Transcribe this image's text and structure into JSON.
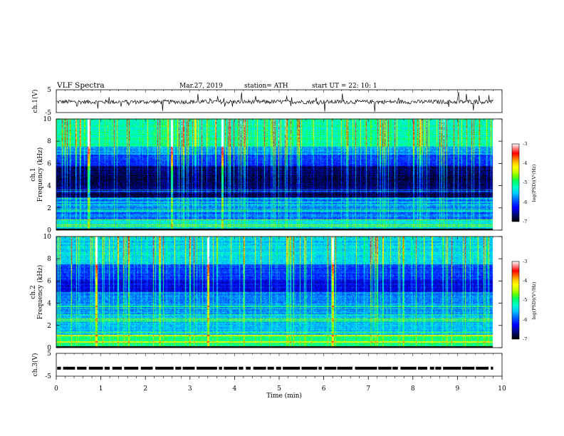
{
  "header": {
    "title": "VLF  Spectra",
    "date": "Mar.27, 2019",
    "station": "station= ATH",
    "start_ut": "start  UT  =    22: 10: 1"
  },
  "chart_data": {
    "type": "heatmap",
    "x": {
      "label": "Time  (min)",
      "range": [
        0,
        10
      ],
      "ticks": [
        "0",
        "1",
        "2",
        "3",
        "4",
        "5",
        "6",
        "7",
        "8",
        "9",
        "10"
      ],
      "data_end": 9.8
    },
    "panels": [
      {
        "id": "ch1-waveform",
        "type": "line",
        "ylabel": "ch.1(V)",
        "ylim": [
          -5,
          5
        ],
        "yticks": [
          "5",
          "-5"
        ],
        "baseline": -0.3,
        "noise_amplitude": 0.9
      },
      {
        "id": "ch1-spectrogram",
        "type": "heatmap",
        "ylabel": "Frequency  (kHz)",
        "channel_label": "ch.1",
        "ylim": [
          0,
          10
        ],
        "yticks": [
          "0",
          "2",
          "4",
          "6",
          "8",
          "10"
        ],
        "bright_bursts_min": [
          0.72,
          2.58,
          3.72
        ],
        "colorbar": {
          "label": "log(PSD)(V²/Hz)",
          "range": [
            -7,
            -3
          ],
          "ticks": [
            "-3",
            "-4",
            "-5",
            "-6",
            "-7"
          ]
        }
      },
      {
        "id": "ch2-spectrogram",
        "type": "heatmap",
        "ylabel": "Frequency  (kHz)",
        "channel_label": "ch.2",
        "ylim": [
          0,
          10
        ],
        "yticks": [
          "0",
          "2",
          "4",
          "6",
          "8",
          "10"
        ],
        "bright_bursts_min": [
          0.9,
          3.4,
          6.2
        ],
        "colorbar": {
          "label": "log(PSD)(V²/Hz)",
          "range": [
            -7,
            -3
          ],
          "ticks": [
            "-3",
            "-4",
            "-5",
            "-6",
            "-7"
          ]
        }
      },
      {
        "id": "ch3-pulses",
        "type": "line",
        "ylabel": "ch.3(V)",
        "ylim": [
          -5,
          5
        ],
        "yticks": [
          "5",
          "-5"
        ],
        "level": -1.5
      }
    ],
    "colormap": [
      "#000000",
      "#000a6b",
      "#0000ff",
      "#0064ff",
      "#00c8ff",
      "#00ffc8",
      "#00ff64",
      "#64ff00",
      "#c8ff00",
      "#ffff00",
      "#ffc800",
      "#ff6400",
      "#ff0000",
      "#ffffff"
    ]
  }
}
